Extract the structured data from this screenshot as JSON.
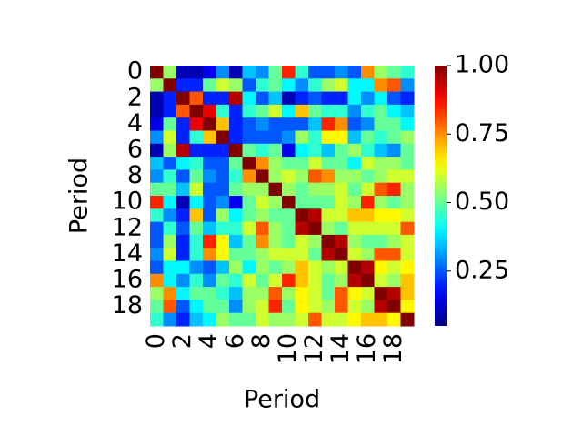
{
  "chart_data": {
    "type": "heatmap",
    "xlabel": "Period",
    "ylabel": "Period",
    "x_categories": [
      "0",
      null,
      "2",
      null,
      "4",
      null,
      "6",
      null,
      "8",
      null,
      "10",
      null,
      "12",
      null,
      "14",
      null,
      "16",
      null,
      "18",
      null
    ],
    "y_categories": [
      "0",
      null,
      "2",
      null,
      "4",
      null,
      "6",
      null,
      "8",
      null,
      "10",
      null,
      "12",
      null,
      "14",
      null,
      "16",
      null,
      "18",
      null
    ],
    "colormap": "jet",
    "clim": [
      0.05,
      1.0
    ],
    "cticks": [
      0.25,
      {
        "value": 0.5,
        "label": "0.50"
      },
      0.75,
      {
        "value": 1.0,
        "label": "1.00"
      }
    ],
    "values": [
      [
        1.0,
        0.55,
        0.1,
        0.1,
        0.15,
        0.3,
        0.1,
        0.35,
        0.3,
        0.5,
        0.85,
        0.45,
        0.25,
        0.25,
        0.3,
        0.25,
        0.75,
        0.55,
        0.5,
        0.45
      ],
      [
        0.55,
        1.0,
        0.2,
        0.2,
        0.5,
        0.6,
        0.55,
        0.25,
        0.45,
        0.5,
        0.4,
        0.3,
        0.45,
        0.55,
        0.6,
        0.4,
        0.4,
        0.75,
        0.8,
        0.3
      ],
      [
        0.1,
        0.2,
        1.0,
        0.8,
        0.2,
        0.2,
        0.95,
        0.4,
        0.25,
        0.35,
        0.1,
        0.2,
        0.25,
        0.2,
        0.2,
        0.4,
        0.3,
        0.4,
        0.25,
        0.2
      ],
      [
        0.1,
        0.2,
        0.8,
        1.0,
        0.9,
        0.45,
        0.2,
        0.45,
        0.5,
        0.6,
        0.4,
        0.7,
        0.5,
        0.45,
        0.45,
        0.3,
        0.45,
        0.5,
        0.4,
        0.35
      ],
      [
        0.15,
        0.5,
        0.2,
        0.9,
        1.0,
        0.7,
        0.2,
        0.25,
        0.3,
        0.25,
        0.25,
        0.25,
        0.35,
        0.85,
        0.75,
        0.25,
        0.3,
        0.5,
        0.5,
        0.4
      ],
      [
        0.3,
        0.6,
        0.2,
        0.45,
        0.7,
        1.0,
        0.2,
        0.25,
        0.25,
        0.25,
        0.3,
        0.55,
        0.45,
        0.65,
        0.65,
        0.35,
        0.5,
        0.45,
        0.5,
        0.55
      ],
      [
        0.1,
        0.55,
        0.95,
        0.2,
        0.2,
        0.2,
        1.0,
        0.5,
        0.45,
        0.5,
        0.15,
        0.4,
        0.45,
        0.35,
        0.5,
        0.55,
        0.45,
        0.35,
        0.3,
        0.5
      ],
      [
        0.35,
        0.25,
        0.4,
        0.45,
        0.25,
        0.25,
        0.5,
        1.0,
        0.75,
        0.55,
        0.5,
        0.5,
        0.6,
        0.5,
        0.5,
        0.4,
        0.6,
        0.55,
        0.55,
        0.5
      ],
      [
        0.3,
        0.45,
        0.25,
        0.5,
        0.3,
        0.25,
        0.45,
        0.75,
        1.0,
        0.55,
        0.6,
        0.55,
        0.8,
        0.75,
        0.55,
        0.55,
        0.5,
        0.55,
        0.6,
        0.6
      ],
      [
        0.5,
        0.5,
        0.35,
        0.6,
        0.25,
        0.25,
        0.5,
        0.55,
        0.55,
        1.0,
        0.55,
        0.5,
        0.55,
        0.55,
        0.6,
        0.5,
        0.6,
        0.8,
        0.85,
        0.55
      ],
      [
        0.85,
        0.4,
        0.1,
        0.4,
        0.25,
        0.3,
        0.15,
        0.5,
        0.6,
        0.55,
        1.0,
        0.5,
        0.5,
        0.5,
        0.6,
        0.55,
        0.85,
        0.55,
        0.5,
        0.55
      ],
      [
        0.45,
        0.3,
        0.2,
        0.7,
        0.25,
        0.55,
        0.4,
        0.5,
        0.55,
        0.5,
        0.5,
        1.0,
        0.95,
        0.6,
        0.6,
        0.7,
        0.7,
        0.65,
        0.65,
        0.6
      ],
      [
        0.25,
        0.45,
        0.25,
        0.5,
        0.35,
        0.45,
        0.45,
        0.6,
        0.8,
        0.55,
        0.5,
        0.95,
        1.0,
        0.55,
        0.5,
        0.6,
        0.6,
        0.6,
        0.6,
        0.8
      ],
      [
        0.25,
        0.55,
        0.2,
        0.45,
        0.85,
        0.65,
        0.35,
        0.5,
        0.75,
        0.55,
        0.5,
        0.6,
        0.55,
        1.0,
        0.95,
        0.55,
        0.5,
        0.5,
        0.55,
        0.6
      ],
      [
        0.3,
        0.6,
        0.2,
        0.45,
        0.75,
        0.65,
        0.5,
        0.5,
        0.55,
        0.6,
        0.6,
        0.6,
        0.5,
        0.95,
        1.0,
        0.6,
        0.55,
        0.8,
        0.8,
        0.6
      ],
      [
        0.25,
        0.4,
        0.4,
        0.3,
        0.25,
        0.35,
        0.55,
        0.4,
        0.55,
        0.5,
        0.55,
        0.7,
        0.6,
        0.55,
        0.6,
        1.0,
        0.95,
        0.65,
        0.6,
        0.65
      ],
      [
        0.75,
        0.4,
        0.3,
        0.45,
        0.3,
        0.5,
        0.45,
        0.6,
        0.5,
        0.6,
        0.85,
        0.7,
        0.6,
        0.5,
        0.55,
        0.95,
        1.0,
        0.6,
        0.55,
        0.7
      ],
      [
        0.55,
        0.75,
        0.4,
        0.5,
        0.5,
        0.45,
        0.35,
        0.55,
        0.55,
        0.8,
        0.55,
        0.65,
        0.6,
        0.5,
        0.8,
        0.65,
        0.6,
        1.0,
        0.95,
        0.7
      ],
      [
        0.5,
        0.8,
        0.25,
        0.4,
        0.5,
        0.5,
        0.3,
        0.55,
        0.6,
        0.85,
        0.5,
        0.65,
        0.6,
        0.55,
        0.8,
        0.6,
        0.55,
        0.95,
        1.0,
        0.65
      ],
      [
        0.45,
        0.3,
        0.2,
        0.35,
        0.4,
        0.55,
        0.5,
        0.5,
        0.6,
        0.55,
        0.55,
        0.6,
        0.8,
        0.6,
        0.6,
        0.65,
        0.7,
        0.7,
        0.65,
        1.0
      ]
    ]
  }
}
